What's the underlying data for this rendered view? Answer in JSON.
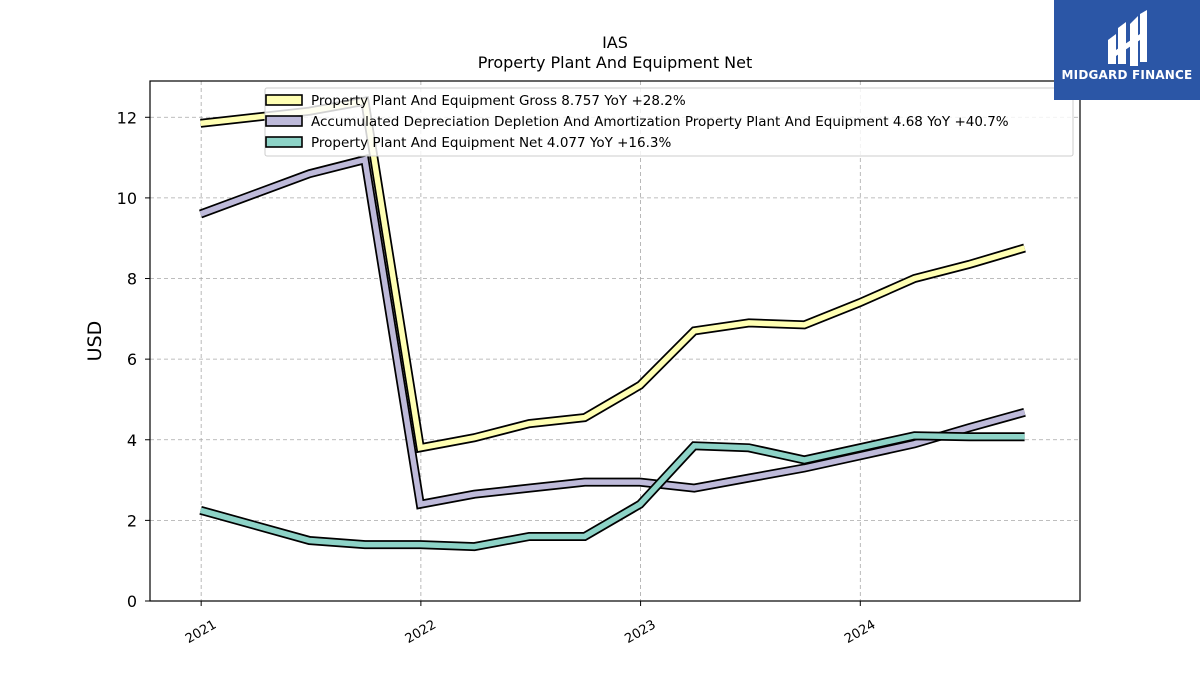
{
  "chart_data": {
    "type": "line",
    "title": "IAS",
    "subtitle": "Property Plant And Equipment Net",
    "ylabel": "USD",
    "xlabel": "",
    "ylim": [
      0,
      12.9
    ],
    "yticks": [
      0,
      2,
      4,
      6,
      8,
      10,
      12
    ],
    "xlim": [
      "2020-10-08",
      "2024-12-31"
    ],
    "xticks": [
      {
        "date": "2021-01-01",
        "label": "2021"
      },
      {
        "date": "2022-01-01",
        "label": "2022"
      },
      {
        "date": "2023-01-01",
        "label": "2023"
      },
      {
        "date": "2024-01-01",
        "label": "2024"
      }
    ],
    "grid": true,
    "legend_position": "top",
    "x": [
      "2020-12-31",
      "2021-06-30",
      "2021-09-30",
      "2021-12-31",
      "2022-03-31",
      "2022-06-30",
      "2022-09-30",
      "2022-12-31",
      "2023-03-31",
      "2023-06-30",
      "2023-09-30",
      "2023-12-31",
      "2024-03-31",
      "2024-06-30",
      "2024-09-30"
    ],
    "series": [
      {
        "name": "Property Plant And Equipment Gross",
        "legend_label": "Property Plant And Equipment Gross  8.757 YoY +28.2%",
        "color": "#ffffb3",
        "values": [
          11.85,
          12.15,
          12.4,
          3.8,
          4.05,
          4.4,
          4.55,
          5.35,
          6.7,
          6.9,
          6.85,
          7.4,
          8.0,
          8.35,
          8.757
        ]
      },
      {
        "name": "Accumulated Depreciation Depletion And Amortization Property Plant And Equipment",
        "legend_label": "Accumulated Depreciation Depletion And Amortization Property Plant And Equipment  4.68 YoY +40.7%",
        "color": "#bebada",
        "values": [
          9.6,
          10.6,
          10.95,
          2.4,
          2.65,
          2.8,
          2.95,
          2.95,
          2.8,
          3.05,
          3.3,
          3.6,
          3.9,
          4.3,
          4.68
        ]
      },
      {
        "name": "Property Plant And Equipment Net",
        "legend_label": "Property Plant And Equipment Net  4.077 YoY +16.3%",
        "color": "#8dd3c7",
        "values": [
          2.25,
          1.5,
          1.4,
          1.4,
          1.35,
          1.6,
          1.6,
          2.4,
          3.85,
          3.8,
          3.5,
          3.8,
          4.1,
          4.077,
          4.077
        ]
      }
    ]
  },
  "logo": {
    "text": "MIDGARD FINANCE",
    "background": "#2b56a6"
  }
}
